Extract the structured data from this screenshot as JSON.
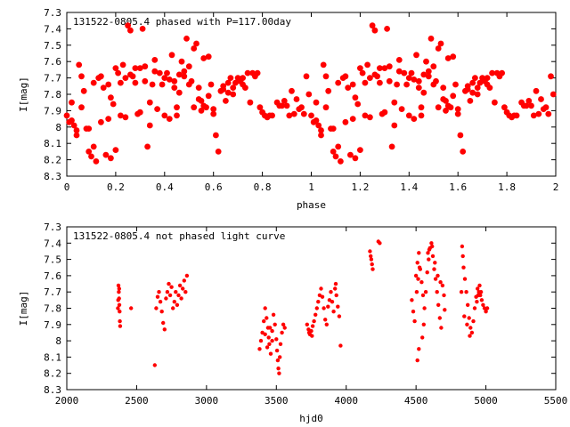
{
  "chart_data": [
    {
      "type": "scatter",
      "title": "131522-0805.4 phased with P=117.00day",
      "xlabel": "phase",
      "ylabel": "I[mag]",
      "xlim": [
        0,
        2
      ],
      "ylim": [
        8.3,
        7.3
      ],
      "y_inverted": true,
      "grid": false,
      "marker_color": "#ff0000",
      "xticks": [
        "0",
        "0.2",
        "0.4",
        "0.6",
        "0.8",
        "1",
        "1.2",
        "1.4",
        "1.6",
        "1.8",
        "2"
      ],
      "yticks": [
        "7.3",
        "7.4",
        "7.5",
        "7.6",
        "7.7",
        "7.8",
        "7.9",
        "8",
        "8.1",
        "8.2",
        "8.3"
      ],
      "points_base": [
        [
          0.0,
          7.93
        ],
        [
          0.01,
          7.97
        ],
        [
          0.02,
          7.85
        ],
        [
          0.03,
          7.99
        ],
        [
          0.04,
          8.05
        ],
        [
          0.05,
          7.62
        ],
        [
          0.06,
          7.88
        ],
        [
          0.07,
          7.78
        ],
        [
          0.08,
          8.01
        ],
        [
          0.09,
          8.15
        ],
        [
          0.1,
          8.18
        ],
        [
          0.11,
          8.12
        ],
        [
          0.12,
          8.21
        ],
        [
          0.13,
          7.7
        ],
        [
          0.14,
          7.97
        ],
        [
          0.15,
          7.76
        ],
        [
          0.16,
          8.17
        ],
        [
          0.17,
          7.74
        ],
        [
          0.18,
          8.19
        ],
        [
          0.19,
          7.86
        ],
        [
          0.2,
          8.14
        ],
        [
          0.21,
          7.67
        ],
        [
          0.22,
          7.73
        ],
        [
          0.23,
          7.62
        ],
        [
          0.24,
          7.94
        ],
        [
          0.25,
          7.38
        ],
        [
          0.26,
          7.41
        ],
        [
          0.27,
          7.69
        ],
        [
          0.28,
          7.73
        ],
        [
          0.29,
          7.92
        ],
        [
          0.3,
          7.64
        ],
        [
          0.31,
          7.4
        ],
        [
          0.32,
          7.63
        ],
        [
          0.33,
          8.12
        ],
        [
          0.34,
          7.85
        ],
        [
          0.35,
          7.74
        ],
        [
          0.36,
          7.59
        ],
        [
          0.37,
          7.89
        ],
        [
          0.38,
          7.67
        ],
        [
          0.39,
          7.74
        ],
        [
          0.4,
          7.7
        ],
        [
          0.41,
          7.67
        ],
        [
          0.42,
          7.71
        ],
        [
          0.43,
          7.56
        ],
        [
          0.44,
          7.72
        ],
        [
          0.45,
          7.93
        ],
        [
          0.46,
          7.79
        ],
        [
          0.47,
          7.6
        ],
        [
          0.48,
          7.69
        ],
        [
          0.49,
          7.46
        ],
        [
          0.5,
          7.74
        ],
        [
          0.51,
          7.72
        ],
        [
          0.52,
          7.88
        ],
        [
          0.53,
          7.49
        ],
        [
          0.54,
          7.76
        ],
        [
          0.55,
          7.84
        ],
        [
          0.56,
          7.58
        ],
        [
          0.57,
          7.88
        ],
        [
          0.58,
          7.81
        ],
        [
          0.59,
          7.74
        ],
        [
          0.6,
          7.92
        ],
        [
          0.61,
          8.05
        ],
        [
          0.62,
          8.15
        ],
        [
          0.63,
          7.78
        ],
        [
          0.64,
          7.75
        ],
        [
          0.65,
          7.84
        ],
        [
          0.66,
          7.79
        ],
        [
          0.67,
          7.7
        ],
        [
          0.68,
          7.76
        ],
        [
          0.69,
          7.73
        ],
        [
          0.7,
          7.7
        ],
        [
          0.71,
          7.72
        ],
        [
          0.72,
          7.7
        ],
        [
          0.73,
          7.76
        ],
        [
          0.74,
          7.67
        ],
        [
          0.75,
          7.85
        ],
        [
          0.76,
          7.67
        ],
        [
          0.77,
          7.69
        ],
        [
          0.78,
          7.67
        ],
        [
          0.79,
          7.88
        ],
        [
          0.8,
          7.91
        ],
        [
          0.81,
          7.93
        ],
        [
          0.82,
          7.94
        ],
        [
          0.83,
          7.93
        ],
        [
          0.84,
          7.93
        ],
        [
          0.86,
          7.85
        ],
        [
          0.87,
          7.87
        ],
        [
          0.88,
          7.87
        ],
        [
          0.89,
          7.84
        ],
        [
          0.9,
          7.87
        ],
        [
          0.91,
          7.93
        ],
        [
          0.92,
          7.78
        ],
        [
          0.93,
          7.92
        ],
        [
          0.94,
          7.83
        ],
        [
          0.95,
          7.89
        ],
        [
          0.96,
          7.88
        ],
        [
          0.97,
          7.92
        ],
        [
          0.98,
          7.69
        ],
        [
          0.99,
          7.8
        ],
        [
          0.3,
          7.91
        ],
        [
          0.22,
          7.93
        ],
        [
          0.17,
          7.95
        ],
        [
          0.24,
          7.7
        ],
        [
          0.26,
          7.68
        ],
        [
          0.28,
          7.64
        ],
        [
          0.36,
          7.66
        ],
        [
          0.42,
          7.95
        ],
        [
          0.18,
          7.82
        ],
        [
          0.34,
          7.99
        ],
        [
          0.11,
          7.73
        ],
        [
          0.06,
          7.69
        ],
        [
          0.52,
          7.52
        ],
        [
          0.58,
          7.57
        ],
        [
          0.64,
          7.77
        ],
        [
          0.4,
          7.93
        ],
        [
          0.44,
          7.76
        ],
        [
          0.46,
          7.68
        ],
        [
          0.48,
          7.66
        ],
        [
          0.54,
          7.83
        ],
        [
          0.56,
          7.87
        ],
        [
          0.6,
          7.89
        ],
        [
          0.66,
          7.73
        ],
        [
          0.68,
          7.8
        ],
        [
          0.72,
          7.74
        ],
        [
          0.32,
          7.72
        ],
        [
          0.14,
          7.69
        ],
        [
          0.2,
          7.64
        ],
        [
          0.09,
          8.01
        ],
        [
          0.04,
          8.02
        ],
        [
          0.02,
          7.96
        ],
        [
          0.55,
          7.9
        ],
        [
          0.45,
          7.88
        ],
        [
          0.5,
          7.63
        ]
      ]
    },
    {
      "type": "scatter",
      "title": "131522-0805.4 not phased light curve",
      "xlabel": "hjd0",
      "ylabel": "I[mag]",
      "xlim": [
        2000,
        5500
      ],
      "ylim": [
        8.3,
        7.3
      ],
      "y_inverted": true,
      "grid": false,
      "marker_color": "#ff0000",
      "xticks": [
        "2000",
        "2500",
        "3000",
        "3500",
        "4000",
        "4500",
        "5000",
        "5500"
      ],
      "yticks": [
        "7.3",
        "7.4",
        "7.5",
        "7.6",
        "7.7",
        "7.8",
        "7.9",
        "8",
        "8.1",
        "8.2",
        "8.3"
      ],
      "points": [
        [
          2370,
          7.66
        ],
        [
          2372,
          7.7
        ],
        [
          2374,
          7.74
        ],
        [
          2376,
          7.78
        ],
        [
          2378,
          7.82
        ],
        [
          2380,
          7.88
        ],
        [
          2382,
          7.91
        ],
        [
          2368,
          7.75
        ],
        [
          2366,
          7.8
        ],
        [
          2375,
          7.68
        ],
        [
          2460,
          7.8
        ],
        [
          2630,
          8.15
        ],
        [
          2640,
          7.8
        ],
        [
          2650,
          7.73
        ],
        [
          2660,
          7.7
        ],
        [
          2670,
          7.76
        ],
        [
          2680,
          7.82
        ],
        [
          2690,
          7.89
        ],
        [
          2700,
          7.93
        ],
        [
          2710,
          7.74
        ],
        [
          2720,
          7.7
        ],
        [
          2730,
          7.65
        ],
        [
          2740,
          7.72
        ],
        [
          2750,
          7.67
        ],
        [
          2760,
          7.8
        ],
        [
          2770,
          7.76
        ],
        [
          2780,
          7.7
        ],
        [
          2790,
          7.78
        ],
        [
          2800,
          7.72
        ],
        [
          2810,
          7.66
        ],
        [
          2820,
          7.74
        ],
        [
          2830,
          7.68
        ],
        [
          2840,
          7.63
        ],
        [
          2850,
          7.7
        ],
        [
          2860,
          7.6
        ],
        [
          3380,
          8.05
        ],
        [
          3390,
          8.0
        ],
        [
          3400,
          7.95
        ],
        [
          3410,
          7.88
        ],
        [
          3420,
          7.8
        ],
        [
          3430,
          7.86
        ],
        [
          3440,
          7.92
        ],
        [
          3450,
          8.02
        ],
        [
          3460,
          8.08
        ],
        [
          3470,
          8.0
        ],
        [
          3480,
          7.84
        ],
        [
          3490,
          7.9
        ],
        [
          3500,
          7.99
        ],
        [
          3510,
          8.12
        ],
        [
          3520,
          8.2
        ],
        [
          3515,
          8.17
        ],
        [
          3525,
          8.1
        ],
        [
          3530,
          8.02
        ],
        [
          3540,
          7.95
        ],
        [
          3550,
          7.9
        ],
        [
          3420,
          7.96
        ],
        [
          3435,
          8.04
        ],
        [
          3445,
          7.98
        ],
        [
          3455,
          7.92
        ],
        [
          3470,
          7.94
        ],
        [
          3505,
          8.06
        ],
        [
          3560,
          7.92
        ],
        [
          3720,
          7.9
        ],
        [
          3730,
          7.93
        ],
        [
          3740,
          7.96
        ],
        [
          3750,
          7.94
        ],
        [
          3760,
          7.91
        ],
        [
          3770,
          7.88
        ],
        [
          3780,
          7.84
        ],
        [
          3790,
          7.8
        ],
        [
          3800,
          7.76
        ],
        [
          3810,
          7.72
        ],
        [
          3820,
          7.68
        ],
        [
          3830,
          7.73
        ],
        [
          3840,
          7.8
        ],
        [
          3850,
          7.87
        ],
        [
          3860,
          7.9
        ],
        [
          3870,
          7.79
        ],
        [
          3880,
          7.75
        ],
        [
          3890,
          7.7
        ],
        [
          3900,
          7.76
        ],
        [
          3910,
          7.82
        ],
        [
          3920,
          7.68
        ],
        [
          3930,
          7.72
        ],
        [
          3940,
          7.79
        ],
        [
          3950,
          7.85
        ],
        [
          3960,
          8.03
        ],
        [
          3735,
          7.95
        ],
        [
          3755,
          7.97
        ],
        [
          3925,
          7.65
        ],
        [
          4170,
          7.45
        ],
        [
          4180,
          7.5
        ],
        [
          4190,
          7.56
        ],
        [
          4175,
          7.48
        ],
        [
          4185,
          7.53
        ],
        [
          4230,
          7.39
        ],
        [
          4240,
          7.4
        ],
        [
          4470,
          7.75
        ],
        [
          4480,
          7.82
        ],
        [
          4490,
          7.88
        ],
        [
          4500,
          7.6
        ],
        [
          4510,
          7.52
        ],
        [
          4520,
          7.46
        ],
        [
          4530,
          7.56
        ],
        [
          4540,
          7.64
        ],
        [
          4550,
          7.72
        ],
        [
          4560,
          7.8
        ],
        [
          4570,
          7.7
        ],
        [
          4580,
          7.58
        ],
        [
          4590,
          7.5
        ],
        [
          4600,
          7.43
        ],
        [
          4610,
          7.4
        ],
        [
          4620,
          7.48
        ],
        [
          4630,
          7.56
        ],
        [
          4640,
          7.62
        ],
        [
          4650,
          7.7
        ],
        [
          4660,
          7.78
        ],
        [
          4670,
          7.86
        ],
        [
          4680,
          7.92
        ],
        [
          4690,
          7.66
        ],
        [
          4700,
          7.72
        ],
        [
          4510,
          8.12
        ],
        [
          4520,
          8.05
        ],
        [
          4505,
          7.7
        ],
        [
          4515,
          7.62
        ],
        [
          4525,
          7.55
        ],
        [
          4545,
          7.98
        ],
        [
          4555,
          7.9
        ],
        [
          4585,
          7.46
        ],
        [
          4595,
          7.44
        ],
        [
          4615,
          7.42
        ],
        [
          4635,
          7.52
        ],
        [
          4655,
          7.6
        ],
        [
          4675,
          7.64
        ],
        [
          4705,
          7.81
        ],
        [
          4830,
          7.42
        ],
        [
          4835,
          7.48
        ],
        [
          4840,
          7.55
        ],
        [
          4850,
          7.62
        ],
        [
          4860,
          7.7
        ],
        [
          4870,
          7.78
        ],
        [
          4880,
          7.86
        ],
        [
          4890,
          7.92
        ],
        [
          4900,
          7.95
        ],
        [
          4910,
          7.88
        ],
        [
          4920,
          7.8
        ],
        [
          4930,
          7.73
        ],
        [
          4940,
          7.68
        ],
        [
          4950,
          7.7
        ],
        [
          4960,
          7.72
        ],
        [
          4970,
          7.75
        ],
        [
          4980,
          7.78
        ],
        [
          4990,
          7.8
        ],
        [
          5000,
          7.82
        ],
        [
          4845,
          7.85
        ],
        [
          4865,
          7.9
        ],
        [
          4885,
          7.97
        ],
        [
          4935,
          7.76
        ],
        [
          4945,
          7.72
        ],
        [
          4955,
          7.66
        ],
        [
          4965,
          7.7
        ],
        [
          5010,
          7.8
        ],
        [
          4825,
          7.7
        ]
      ]
    }
  ]
}
